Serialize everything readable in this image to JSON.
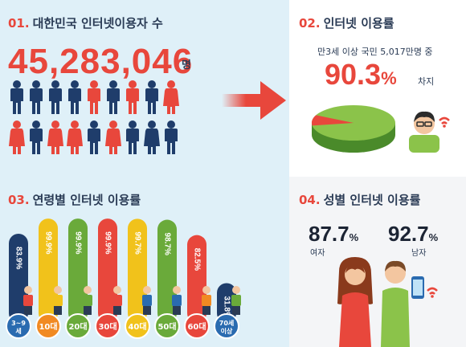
{
  "section1": {
    "num": "01.",
    "title": "대한민국 인터넷이용자 수",
    "value": "45,283,046",
    "unit": "명"
  },
  "section2": {
    "num": "02.",
    "title": "인터넷 이용률",
    "subtext": "만3세 이상 국민 5,017만명 중",
    "rate": "90.3",
    "rate_suffix": "%",
    "rate_unit": "차지"
  },
  "section3": {
    "num": "03.",
    "title": "연령별 인터넷 이용률"
  },
  "section4": {
    "num": "04.",
    "title": "성별 인터넷 이용률",
    "female": {
      "value": "87.7",
      "pct": "%",
      "label": "여자"
    },
    "male": {
      "value": "92.7",
      "pct": "%",
      "label": "남자"
    }
  },
  "colors": {
    "red": "#e8473c",
    "navy": "#1f3d6b",
    "green": "#6aaa3a",
    "yellow": "#f1c21b",
    "orange": "#f18a22",
    "blue": "#2a6bb0"
  },
  "chart_data": {
    "type": "bar",
    "categories": [
      "3~9세",
      "10대",
      "20대",
      "30대",
      "40대",
      "50대",
      "60대",
      "70세 이상"
    ],
    "values": [
      83.9,
      99.9,
      99.9,
      99.9,
      99.7,
      98.7,
      82.5,
      31.8
    ],
    "value_labels": [
      "83.9%",
      "99.9%",
      "99.9%",
      "99.9%",
      "99.7%",
      "98.7%",
      "82.5%",
      "31.8%"
    ],
    "bar_colors": [
      "#1f3d6b",
      "#f1c21b",
      "#6aaa3a",
      "#e8473c",
      "#f1c21b",
      "#6aaa3a",
      "#e8473c",
      "#1f3d6b"
    ],
    "circle_colors": [
      "#2a6bb0",
      "#f18a22",
      "#6aaa3a",
      "#e8473c",
      "#f1c21b",
      "#6aaa3a",
      "#e8473c",
      "#2a6bb0"
    ],
    "ylim": [
      0,
      100
    ]
  },
  "pie": {
    "value": 90.3
  }
}
